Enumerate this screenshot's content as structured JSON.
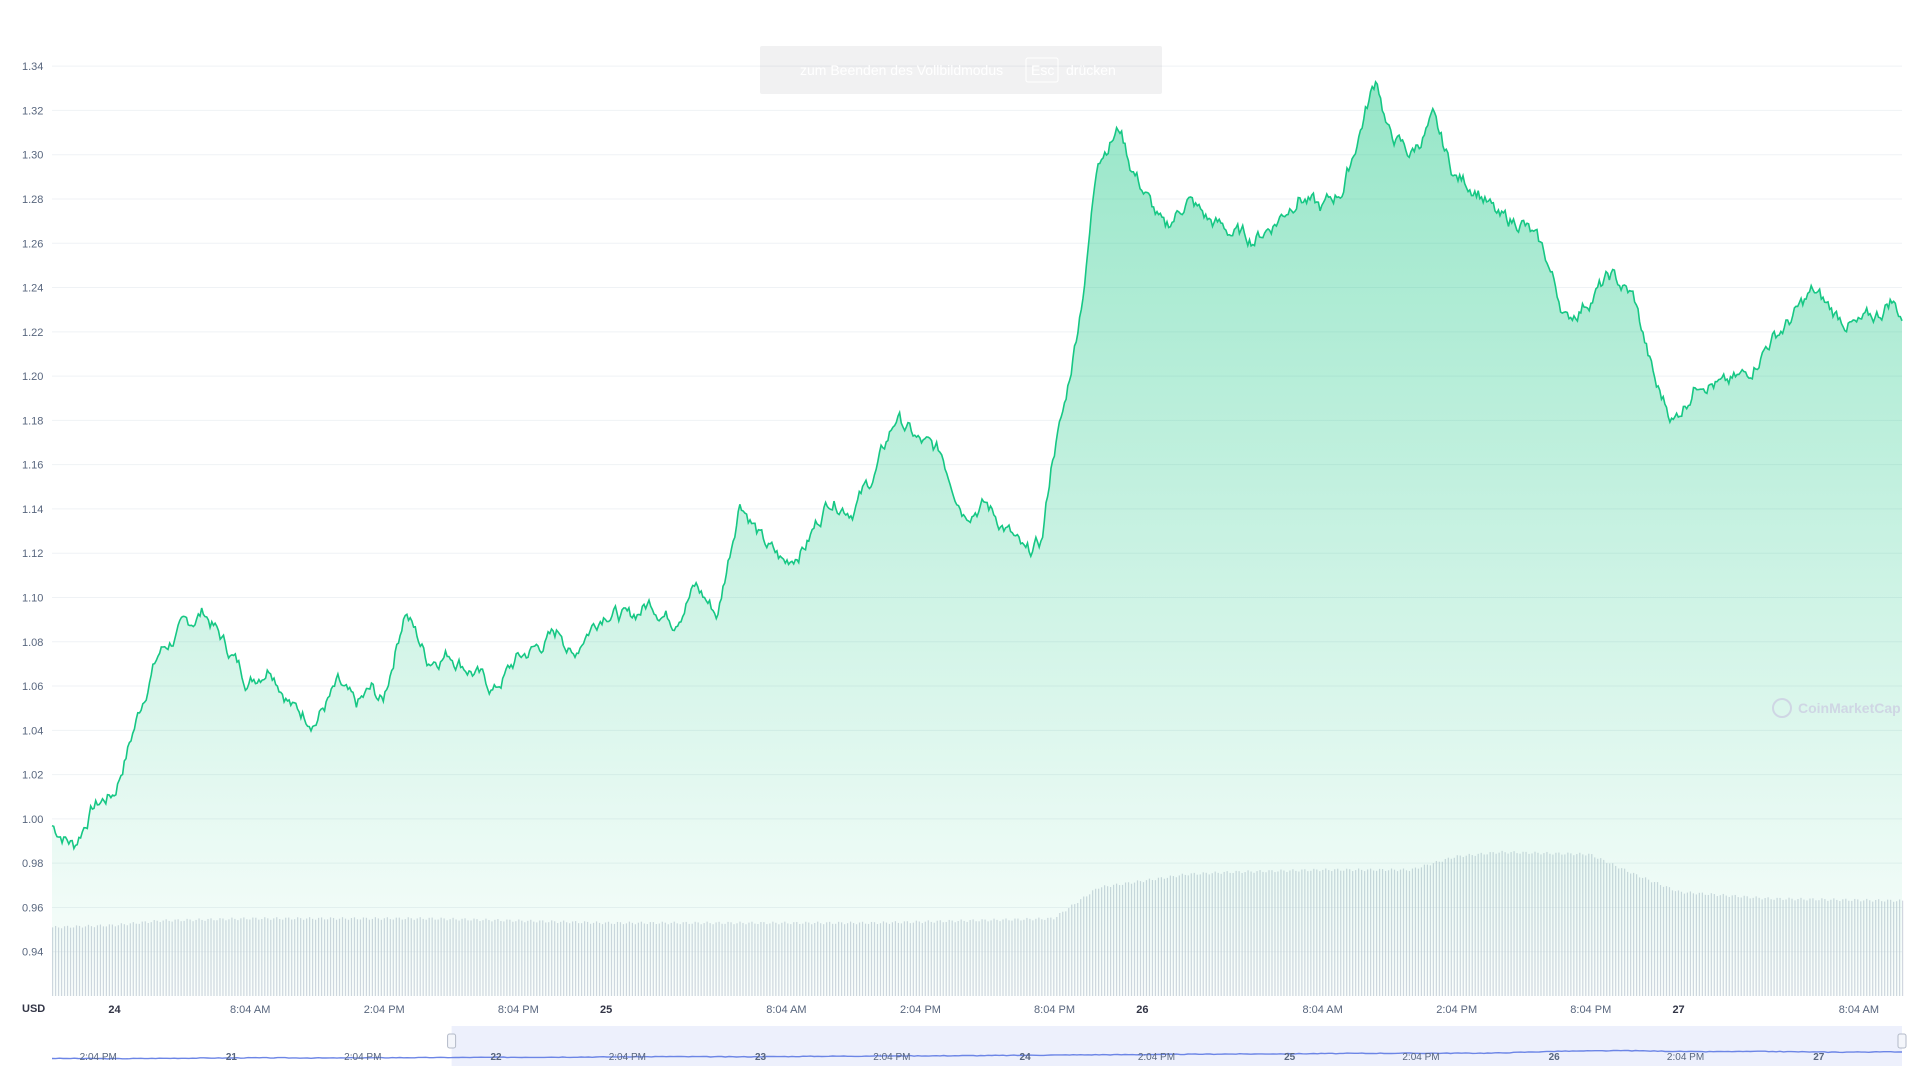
{
  "banner": {
    "text_before": "zum Beenden des Vollbildmodus",
    "key": "Esc",
    "text_after": "drücken"
  },
  "watermark": {
    "text": "CoinMarketCap"
  },
  "axis": {
    "unit_label": "USD"
  },
  "colors": {
    "line": "#16c784",
    "area_top": "#16c784",
    "grid": "#eff2f5",
    "volume": "#c3cad6",
    "navigator_line": "#6c85e6",
    "navigator_fill": "#e1e6fa"
  },
  "chart_data": {
    "type": "area",
    "ylim": [
      0.92,
      1.35
    ],
    "yticks": [
      1.34,
      1.32,
      1.3,
      1.28,
      1.26,
      1.24,
      1.22,
      1.2,
      1.18,
      1.16,
      1.14,
      1.12,
      1.1,
      1.08,
      1.06,
      1.04,
      1.02,
      1.0,
      0.98,
      0.96,
      0.94
    ],
    "xticks": [
      {
        "label": "24",
        "x": 2.0,
        "major": true
      },
      {
        "label": "8:04 AM",
        "x": 8.07
      },
      {
        "label": "2:04 PM",
        "x": 14.07
      },
      {
        "label": "8:04 PM",
        "x": 20.07
      },
      {
        "label": "25",
        "x": 24.0,
        "major": true
      },
      {
        "label": "8:04 AM",
        "x": 32.07
      },
      {
        "label": "2:04 PM",
        "x": 38.07
      },
      {
        "label": "8:04 PM",
        "x": 44.07
      },
      {
        "label": "26",
        "x": 48.0,
        "major": true
      },
      {
        "label": "8:04 AM",
        "x": 56.07
      },
      {
        "label": "2:04 PM",
        "x": 62.07
      },
      {
        "label": "8:04 PM",
        "x": 68.07
      },
      {
        "label": "27",
        "x": 72.0,
        "major": true
      },
      {
        "label": "8:04 AM",
        "x": 80.07
      }
    ],
    "xlim": [
      -0.8,
      82.0
    ],
    "price": {
      "x": [
        -0.8,
        0.2,
        1.0,
        2.0,
        3.0,
        3.5,
        4.0,
        5.0,
        6.0,
        7.0,
        8.0,
        9.0,
        10.0,
        11.0,
        12.0,
        12.8,
        13.5,
        14.0,
        15.0,
        16.0,
        17.0,
        18.0,
        19.0,
        20.0,
        21.0,
        22.0,
        22.5,
        23.0,
        24.0,
        25.0,
        26.0,
        27.0,
        28.0,
        29.0,
        30.0,
        31.0,
        32.0,
        33.0,
        34.0,
        35.0,
        36.0,
        37.0,
        38.0,
        39.0,
        40.0,
        41.0,
        42.0,
        42.8,
        43.5,
        44.0,
        44.5,
        45.0,
        45.5,
        46.0,
        47.0,
        47.5,
        48.0,
        49.0,
        50.0,
        51.0,
        52.0,
        53.0,
        54.0,
        55.0,
        56.0,
        57.0,
        58.0,
        58.5,
        59.0,
        60.0,
        61.0,
        62.0,
        63.0,
        64.0,
        65.0,
        66.0,
        67.0,
        68.0,
        69.0,
        70.0,
        71.0,
        71.8,
        73.0,
        74.0,
        75.0,
        76.0,
        77.0,
        78.0,
        79.0,
        80.0,
        81.0,
        81.5,
        82.0
      ],
      "y": [
        0.997,
        0.988,
        1.005,
        1.012,
        1.045,
        1.062,
        1.075,
        1.085,
        1.094,
        1.078,
        1.062,
        1.07,
        1.05,
        1.045,
        1.06,
        1.05,
        1.058,
        1.052,
        1.095,
        1.072,
        1.075,
        1.067,
        1.058,
        1.072,
        1.078,
        1.085,
        1.072,
        1.083,
        1.095,
        1.09,
        1.098,
        1.09,
        1.105,
        1.092,
        1.145,
        1.125,
        1.115,
        1.125,
        1.145,
        1.14,
        1.155,
        1.182,
        1.17,
        1.165,
        1.14,
        1.142,
        1.13,
        1.118,
        1.125,
        1.165,
        1.185,
        1.215,
        1.25,
        1.3,
        1.312,
        1.295,
        1.285,
        1.265,
        1.28,
        1.27,
        1.265,
        1.262,
        1.27,
        1.282,
        1.275,
        1.285,
        1.32,
        1.335,
        1.31,
        1.3,
        1.315,
        1.29,
        1.285,
        1.27,
        1.27,
        1.255,
        1.225,
        1.235,
        1.245,
        1.235,
        1.195,
        1.18,
        1.2,
        1.195,
        1.2,
        1.215,
        1.225,
        1.238,
        1.228,
        1.222,
        1.228,
        1.235,
        1.227
      ]
    },
    "volume": {
      "note_free": false,
      "x": [
        -0.8,
        2.0,
        4.0,
        8.0,
        12.0,
        16.0,
        20.0,
        24.0,
        28.0,
        32.0,
        36.0,
        40.0,
        44.0,
        45.0,
        46.0,
        48.0,
        50.0,
        52.0,
        56.0,
        60.0,
        62.0,
        64.0,
        68.0,
        70.0,
        72.0,
        76.0,
        82.0
      ],
      "y": [
        0.951,
        0.952,
        0.954,
        0.955,
        0.955,
        0.955,
        0.954,
        0.953,
        0.953,
        0.953,
        0.953,
        0.954,
        0.955,
        0.962,
        0.969,
        0.972,
        0.975,
        0.976,
        0.977,
        0.977,
        0.983,
        0.985,
        0.984,
        0.975,
        0.967,
        0.964,
        0.963
      ]
    },
    "navigator": {
      "ticks": [
        {
          "label": "2:04 PM",
          "pos": 0.025
        },
        {
          "label": "21",
          "pos": 0.097,
          "major": true
        },
        {
          "label": "2:04 PM",
          "pos": 0.168
        },
        {
          "label": "22",
          "pos": 0.24,
          "major": true
        },
        {
          "label": "2:04 PM",
          "pos": 0.311
        },
        {
          "label": "23",
          "pos": 0.383,
          "major": true
        },
        {
          "label": "2:04 PM",
          "pos": 0.454
        },
        {
          "label": "24",
          "pos": 0.526,
          "major": true
        },
        {
          "label": "2:04 PM",
          "pos": 0.597
        },
        {
          "label": "25",
          "pos": 0.669,
          "major": true
        },
        {
          "label": "2:04 PM",
          "pos": 0.74
        },
        {
          "label": "26",
          "pos": 0.812,
          "major": true
        },
        {
          "label": "2:04 PM",
          "pos": 0.883
        },
        {
          "label": "27",
          "pos": 0.955,
          "major": true
        }
      ],
      "selected_range": [
        0.216,
        1.0
      ],
      "series": [
        0.3,
        0.28,
        0.32,
        0.35,
        0.33,
        0.36,
        0.38,
        0.4,
        0.42,
        0.45,
        0.43,
        0.47,
        0.5,
        0.52,
        0.55,
        0.6,
        0.62,
        0.66,
        0.68,
        0.72,
        0.73,
        0.74,
        0.9,
        0.95,
        0.86,
        0.88,
        0.82,
        0.85
      ]
    }
  }
}
